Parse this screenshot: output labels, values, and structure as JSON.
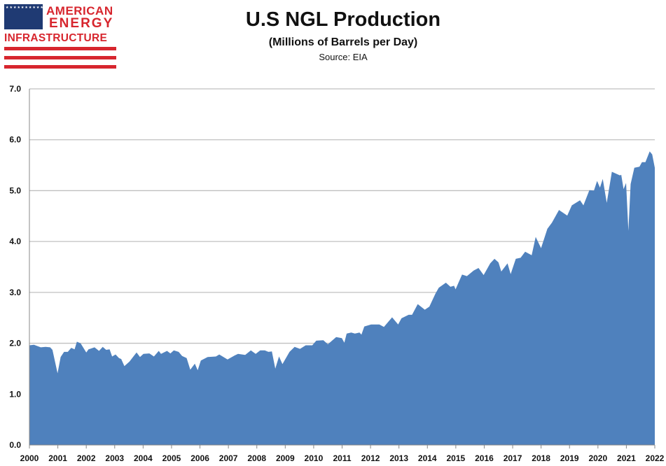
{
  "logo": {
    "line1": "AMERICAN",
    "line2": "ENERGY",
    "line3": "INFRASTRUCTURE",
    "stars": "★★★★★★★★★★★★★★★★★★★★★★★★★★★★★★★★★★★★★★★★★★★★★★★★★★"
  },
  "colors": {
    "fill": "#4f81bd",
    "grid": "#c0c0c0",
    "brand_red": "#d7262e",
    "brand_blue": "#1f3a73"
  },
  "chart_data": {
    "type": "area",
    "title": "U.S NGL Production",
    "subtitle": "(Millions of Barrels per Day)",
    "source": "Source:  EIA",
    "xlabel": "",
    "ylabel": "",
    "xlim": [
      2000,
      2022
    ],
    "ylim": [
      0,
      7
    ],
    "grid": true,
    "y_ticks": [
      "0.0",
      "1.0",
      "2.0",
      "3.0",
      "4.0",
      "5.0",
      "6.0",
      "7.0"
    ],
    "x_ticks": [
      "2000",
      "2001",
      "2002",
      "2003",
      "2004",
      "2005",
      "2006",
      "2007",
      "2008",
      "2009",
      "2010",
      "2011",
      "2012",
      "2013",
      "2014",
      "2015",
      "2016",
      "2017",
      "2018",
      "2019",
      "2020",
      "2021",
      "2022"
    ],
    "series": [
      {
        "name": "U.S NGL Production",
        "points": [
          [
            2000.0,
            1.96
          ],
          [
            2000.16,
            1.97
          ],
          [
            2000.4,
            1.92
          ],
          [
            2000.57,
            1.93
          ],
          [
            2000.73,
            1.92
          ],
          [
            2000.81,
            1.87
          ],
          [
            2000.99,
            1.41
          ],
          [
            2001.1,
            1.73
          ],
          [
            2001.22,
            1.83
          ],
          [
            2001.35,
            1.83
          ],
          [
            2001.47,
            1.91
          ],
          [
            2001.59,
            1.88
          ],
          [
            2001.67,
            2.03
          ],
          [
            2001.8,
            2.0
          ],
          [
            2002.0,
            1.82
          ],
          [
            2002.08,
            1.88
          ],
          [
            2002.29,
            1.92
          ],
          [
            2002.45,
            1.85
          ],
          [
            2002.58,
            1.93
          ],
          [
            2002.7,
            1.87
          ],
          [
            2002.82,
            1.88
          ],
          [
            2002.91,
            1.74
          ],
          [
            2003.03,
            1.78
          ],
          [
            2003.15,
            1.71
          ],
          [
            2003.23,
            1.69
          ],
          [
            2003.34,
            1.55
          ],
          [
            2003.52,
            1.64
          ],
          [
            2003.77,
            1.82
          ],
          [
            2003.89,
            1.73
          ],
          [
            2004.01,
            1.79
          ],
          [
            2004.22,
            1.8
          ],
          [
            2004.38,
            1.74
          ],
          [
            2004.55,
            1.85
          ],
          [
            2004.63,
            1.79
          ],
          [
            2004.84,
            1.85
          ],
          [
            2004.96,
            1.8
          ],
          [
            2005.08,
            1.86
          ],
          [
            2005.25,
            1.83
          ],
          [
            2005.37,
            1.75
          ],
          [
            2005.53,
            1.71
          ],
          [
            2005.66,
            1.48
          ],
          [
            2005.82,
            1.6
          ],
          [
            2005.92,
            1.47
          ],
          [
            2006.03,
            1.66
          ],
          [
            2006.27,
            1.73
          ],
          [
            2006.56,
            1.74
          ],
          [
            2006.68,
            1.78
          ],
          [
            2006.97,
            1.68
          ],
          [
            2007.22,
            1.76
          ],
          [
            2007.34,
            1.79
          ],
          [
            2007.59,
            1.77
          ],
          [
            2007.79,
            1.86
          ],
          [
            2007.96,
            1.79
          ],
          [
            2008.12,
            1.86
          ],
          [
            2008.28,
            1.86
          ],
          [
            2008.41,
            1.83
          ],
          [
            2008.53,
            1.84
          ],
          [
            2008.65,
            1.5
          ],
          [
            2008.78,
            1.74
          ],
          [
            2008.9,
            1.59
          ],
          [
            2009.15,
            1.83
          ],
          [
            2009.33,
            1.93
          ],
          [
            2009.52,
            1.89
          ],
          [
            2009.72,
            1.96
          ],
          [
            2009.95,
            1.96
          ],
          [
            2010.09,
            2.05
          ],
          [
            2010.34,
            2.06
          ],
          [
            2010.5,
            1.98
          ],
          [
            2010.79,
            2.12
          ],
          [
            2010.99,
            2.1
          ],
          [
            2011.08,
            2.01
          ],
          [
            2011.16,
            2.19
          ],
          [
            2011.32,
            2.21
          ],
          [
            2011.45,
            2.19
          ],
          [
            2011.61,
            2.21
          ],
          [
            2011.68,
            2.17
          ],
          [
            2011.78,
            2.33
          ],
          [
            2012.02,
            2.37
          ],
          [
            2012.31,
            2.37
          ],
          [
            2012.47,
            2.32
          ],
          [
            2012.76,
            2.51
          ],
          [
            2012.97,
            2.37
          ],
          [
            2013.09,
            2.49
          ],
          [
            2013.34,
            2.56
          ],
          [
            2013.46,
            2.56
          ],
          [
            2013.66,
            2.77
          ],
          [
            2013.91,
            2.66
          ],
          [
            2014.07,
            2.72
          ],
          [
            2014.28,
            2.97
          ],
          [
            2014.4,
            3.09
          ],
          [
            2014.65,
            3.19
          ],
          [
            2014.81,
            3.11
          ],
          [
            2014.94,
            3.13
          ],
          [
            2014.99,
            3.06
          ],
          [
            2015.22,
            3.35
          ],
          [
            2015.39,
            3.32
          ],
          [
            2015.63,
            3.43
          ],
          [
            2015.8,
            3.48
          ],
          [
            2015.98,
            3.34
          ],
          [
            2016.21,
            3.57
          ],
          [
            2016.36,
            3.66
          ],
          [
            2016.5,
            3.59
          ],
          [
            2016.6,
            3.41
          ],
          [
            2016.82,
            3.57
          ],
          [
            2016.93,
            3.36
          ],
          [
            2017.11,
            3.66
          ],
          [
            2017.28,
            3.68
          ],
          [
            2017.44,
            3.8
          ],
          [
            2017.67,
            3.73
          ],
          [
            2017.81,
            4.09
          ],
          [
            2018.0,
            3.87
          ],
          [
            2018.22,
            4.25
          ],
          [
            2018.38,
            4.37
          ],
          [
            2018.63,
            4.62
          ],
          [
            2018.92,
            4.51
          ],
          [
            2019.08,
            4.71
          ],
          [
            2019.37,
            4.81
          ],
          [
            2019.49,
            4.71
          ],
          [
            2019.7,
            5.01
          ],
          [
            2019.86,
            5.0
          ],
          [
            2019.97,
            5.19
          ],
          [
            2020.07,
            5.06
          ],
          [
            2020.17,
            5.23
          ],
          [
            2020.31,
            4.76
          ],
          [
            2020.49,
            5.37
          ],
          [
            2020.77,
            5.3
          ],
          [
            2020.82,
            5.31
          ],
          [
            2020.9,
            5.03
          ],
          [
            2020.99,
            5.15
          ],
          [
            2021.07,
            4.21
          ],
          [
            2021.15,
            5.13
          ],
          [
            2021.28,
            5.45
          ],
          [
            2021.46,
            5.47
          ],
          [
            2021.55,
            5.56
          ],
          [
            2021.67,
            5.56
          ],
          [
            2021.82,
            5.77
          ],
          [
            2021.91,
            5.71
          ],
          [
            2022.0,
            5.45
          ]
        ]
      }
    ]
  }
}
